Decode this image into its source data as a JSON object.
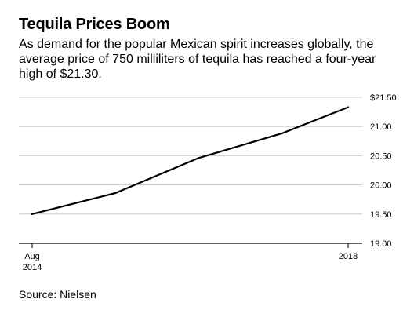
{
  "title": "Tequila Prices Boom",
  "subtitle": "As demand for the popular Mexican spirit increases globally, the average price of 750 milliliters of tequila has reached a four-year high of $21.30.",
  "source": "Source: Nielsen",
  "colors": {
    "line": "#000000",
    "grid": "#cccccc",
    "axis": "#000000",
    "text": "#000000"
  },
  "chart_data": {
    "type": "line",
    "title": "",
    "xlabel": "",
    "ylabel": "",
    "x": [
      2014.6,
      2015.6,
      2016.6,
      2017.6,
      2018.4
    ],
    "values": [
      19.5,
      19.86,
      20.46,
      20.88,
      21.33
    ],
    "ylim": [
      19.0,
      21.5
    ],
    "xlim": [
      2014.6,
      2018.4
    ],
    "yticks": [
      21.5,
      21.0,
      20.5,
      20.0,
      19.5,
      19.0
    ],
    "ytick_labels": [
      "$21.50",
      "21.00",
      "20.50",
      "20.00",
      "19.50",
      "19.00"
    ],
    "xticks": [
      2014.6,
      2018.4
    ],
    "xtick_labels": [
      [
        "Aug",
        "2014"
      ],
      [
        "2018"
      ]
    ],
    "grid": true,
    "legend": "none"
  }
}
